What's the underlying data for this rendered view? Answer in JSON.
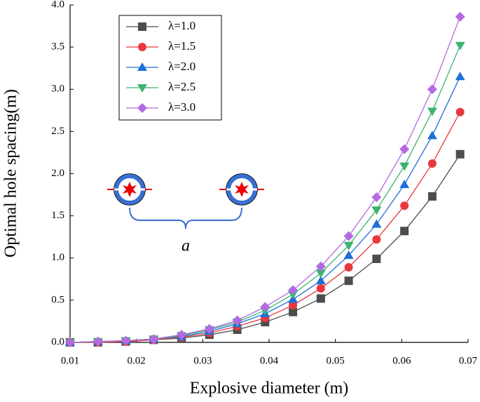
{
  "chart_data": {
    "type": "line",
    "xlabel": "Explosive diameter (m)",
    "ylabel": "Optimal hole spacing(m)",
    "annotation": "a",
    "legend": "upper left",
    "x": [
      0.01,
      0.0142,
      0.0184,
      0.0226,
      0.0268,
      0.031,
      0.0352,
      0.0394,
      0.0436,
      0.0478,
      0.052,
      0.0562,
      0.0604,
      0.0646,
      0.0688
    ],
    "series": [
      {
        "name": "λ=1.0",
        "color": "#4d4d4d",
        "marker": "square",
        "values": [
          0.0,
          0.0,
          0.01,
          0.03,
          0.05,
          0.09,
          0.15,
          0.24,
          0.36,
          0.52,
          0.73,
          0.99,
          1.32,
          1.73,
          2.23
        ]
      },
      {
        "name": "λ=1.5",
        "color": "#e8383d",
        "marker": "circle",
        "values": [
          0.0,
          0.0,
          0.01,
          0.03,
          0.06,
          0.11,
          0.19,
          0.29,
          0.44,
          0.64,
          0.89,
          1.22,
          1.62,
          2.12,
          2.73
        ]
      },
      {
        "name": "λ=2.0",
        "color": "#1f6fd8",
        "marker": "triangle-up",
        "values": [
          0.0,
          0.01,
          0.02,
          0.04,
          0.07,
          0.13,
          0.22,
          0.34,
          0.51,
          0.73,
          1.03,
          1.4,
          1.87,
          2.45,
          3.15
        ]
      },
      {
        "name": "λ=2.5",
        "color": "#3cb371",
        "marker": "triangle-down",
        "values": [
          0.0,
          0.01,
          0.02,
          0.04,
          0.08,
          0.15,
          0.24,
          0.38,
          0.57,
          0.82,
          1.15,
          1.57,
          2.09,
          2.74,
          3.52
        ]
      },
      {
        "name": "λ=3.0",
        "color": "#b36ae2",
        "marker": "diamond",
        "values": [
          0.0,
          0.01,
          0.02,
          0.04,
          0.09,
          0.16,
          0.26,
          0.42,
          0.62,
          0.9,
          1.26,
          1.72,
          2.29,
          3.0,
          3.86
        ]
      }
    ],
    "xlim": [
      0.01,
      0.07
    ],
    "ylim": [
      0,
      4
    ],
    "xticks": [
      0.01,
      0.02,
      0.03,
      0.04,
      0.05,
      0.06,
      0.07
    ],
    "yticks": [
      {
        "value": 0,
        "label": "0.0"
      },
      0.5,
      {
        "value": 1,
        "label": "1.0"
      },
      1.5,
      {
        "value": 2,
        "label": "2.0"
      },
      2.5,
      {
        "value": 3,
        "label": "3.0"
      },
      3.5,
      {
        "value": 4,
        "label": "4.0"
      }
    ]
  }
}
